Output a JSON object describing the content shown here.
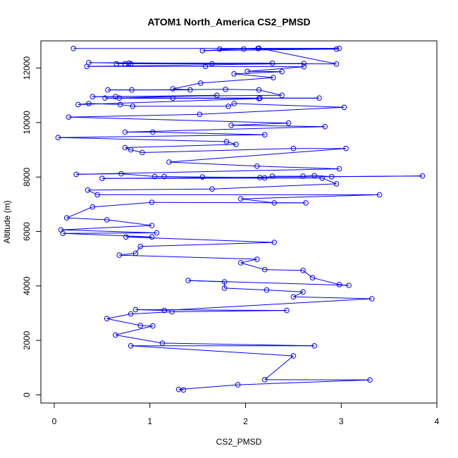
{
  "chart_data": {
    "type": "line",
    "title": "ATOM1 North_America CS2_PMSD",
    "xlabel": "CS2_PMSD",
    "ylabel": "Altitude (m)",
    "xlim": [
      -0.14,
      4.0
    ],
    "ylim": [
      -300,
      13000
    ],
    "xticks": [
      0,
      1,
      2,
      3,
      4
    ],
    "yticks": [
      0,
      2000,
      4000,
      6000,
      8000,
      10000,
      12000
    ],
    "grid": false,
    "marker": "open-circle",
    "series": [
      {
        "color": "#0000ff",
        "points": [
          [
            0.2,
            12720
          ],
          [
            2.98,
            12720
          ],
          [
            2.13,
            12720
          ],
          [
            1.73,
            12700
          ],
          [
            1.98,
            12700
          ],
          [
            2.95,
            12700
          ],
          [
            1.55,
            12640
          ],
          [
            2.14,
            12730
          ],
          [
            2.95,
            12150
          ],
          [
            0.36,
            12200
          ],
          [
            0.78,
            12180
          ],
          [
            2.28,
            12180
          ],
          [
            0.65,
            12160
          ],
          [
            0.74,
            12160
          ],
          [
            0.8,
            12160
          ],
          [
            1.65,
            12160
          ],
          [
            2.61,
            12170
          ],
          [
            0.34,
            12060
          ],
          [
            1.58,
            12060
          ],
          [
            2.61,
            12050
          ],
          [
            2.02,
            11880
          ],
          [
            2.38,
            11870
          ],
          [
            1.88,
            11790
          ],
          [
            2.29,
            11650
          ],
          [
            1.53,
            11450
          ],
          [
            1.24,
            11240
          ],
          [
            1.42,
            11200
          ],
          [
            0.56,
            11200
          ],
          [
            0.81,
            11200
          ],
          [
            1.79,
            11220
          ],
          [
            2.14,
            11200
          ],
          [
            2.38,
            11000
          ],
          [
            0.4,
            10950
          ],
          [
            0.64,
            10950
          ],
          [
            1.7,
            11000
          ],
          [
            0.68,
            10900
          ],
          [
            1.24,
            10900
          ],
          [
            2.15,
            10900
          ],
          [
            2.77,
            10900
          ],
          [
            0.53,
            10900
          ],
          [
            2.14,
            10880
          ],
          [
            0.25,
            10660
          ],
          [
            0.36,
            10700
          ],
          [
            0.69,
            10660
          ],
          [
            0.82,
            10600
          ],
          [
            1.82,
            10600
          ],
          [
            1.88,
            10700
          ],
          [
            3.03,
            10560
          ],
          [
            1.52,
            10300
          ],
          [
            0.15,
            10200
          ],
          [
            2.45,
            9980
          ],
          [
            1.85,
            9900
          ],
          [
            2.83,
            9850
          ],
          [
            0.74,
            9650
          ],
          [
            1.03,
            9650
          ],
          [
            2.2,
            9550
          ],
          [
            0.04,
            9450
          ],
          [
            1.8,
            9300
          ],
          [
            1.9,
            9200
          ],
          [
            0.74,
            9080
          ],
          [
            0.8,
            9000
          ],
          [
            0.92,
            8900
          ],
          [
            2.5,
            9050
          ],
          [
            3.05,
            9050
          ],
          [
            1.2,
            8550
          ],
          [
            2.12,
            8400
          ],
          [
            2.98,
            8300
          ],
          [
            0.23,
            8100
          ],
          [
            0.7,
            8120
          ],
          [
            1.05,
            8020
          ],
          [
            1.15,
            8020
          ],
          [
            1.55,
            8000
          ],
          [
            2.15,
            7980
          ],
          [
            2.2,
            7970
          ],
          [
            2.28,
            8030
          ],
          [
            2.6,
            8030
          ],
          [
            2.72,
            8050
          ],
          [
            2.9,
            8010
          ],
          [
            3.85,
            8040
          ],
          [
            0.5,
            7950
          ],
          [
            2.8,
            7960
          ],
          [
            2.95,
            7750
          ],
          [
            1.65,
            7560
          ],
          [
            0.35,
            7520
          ],
          [
            0.45,
            7350
          ],
          [
            3.4,
            7350
          ],
          [
            1.95,
            7200
          ],
          [
            2.3,
            7050
          ],
          [
            2.63,
            7050
          ],
          [
            1.02,
            7070
          ],
          [
            0.4,
            6900
          ],
          [
            0.13,
            6500
          ],
          [
            0.55,
            6430
          ],
          [
            1.02,
            6220
          ],
          [
            0.07,
            6060
          ],
          [
            1.07,
            5950
          ],
          [
            0.09,
            5930
          ],
          [
            1.02,
            5800
          ],
          [
            0.75,
            5800
          ],
          [
            2.3,
            5600
          ],
          [
            0.9,
            5450
          ],
          [
            0.85,
            5200
          ],
          [
            0.68,
            5130
          ],
          [
            2.12,
            4980
          ],
          [
            1.95,
            4850
          ],
          [
            2.2,
            4600
          ],
          [
            2.6,
            4570
          ],
          [
            2.7,
            4300
          ],
          [
            2.98,
            4050
          ],
          [
            3.08,
            4020
          ],
          [
            1.4,
            4200
          ],
          [
            1.78,
            4150
          ],
          [
            1.78,
            3920
          ],
          [
            2.22,
            3850
          ],
          [
            2.6,
            3780
          ],
          [
            2.5,
            3600
          ],
          [
            3.32,
            3530
          ],
          [
            1.15,
            3100
          ],
          [
            0.85,
            3130
          ],
          [
            2.43,
            3100
          ],
          [
            1.23,
            3050
          ],
          [
            0.8,
            2970
          ],
          [
            0.55,
            2800
          ],
          [
            0.9,
            2550
          ],
          [
            1.03,
            2530
          ],
          [
            0.64,
            2200
          ],
          [
            1.13,
            1900
          ],
          [
            2.72,
            1800
          ],
          [
            0.8,
            1800
          ],
          [
            2.5,
            1430
          ],
          [
            2.2,
            560
          ],
          [
            3.3,
            550
          ],
          [
            1.92,
            370
          ],
          [
            1.3,
            200
          ],
          [
            1.35,
            180
          ]
        ]
      }
    ]
  }
}
